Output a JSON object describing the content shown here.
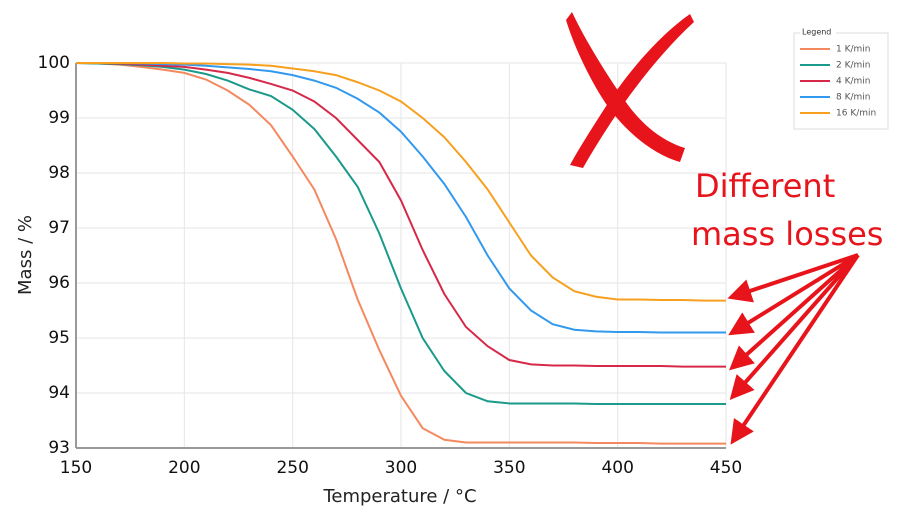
{
  "chart_data": {
    "type": "line",
    "x_label": "Temperature / °C",
    "y_label": "Mass / %",
    "legend_title": "Legend",
    "legend": "top-right",
    "grid": true,
    "annotation": [
      "Different",
      "mass losses"
    ],
    "x": [
      150,
      160,
      170,
      180,
      190,
      200,
      210,
      220,
      230,
      240,
      250,
      260,
      270,
      280,
      290,
      300,
      310,
      320,
      330,
      340,
      350,
      360,
      370,
      380,
      390,
      400,
      410,
      420,
      430,
      440,
      450
    ],
    "xlim": [
      150,
      450
    ],
    "xticks": [
      150,
      200,
      250,
      300,
      350,
      400,
      450
    ],
    "ylim": [
      93,
      100
    ],
    "yticks": [
      93,
      94,
      95,
      96,
      97,
      98,
      99,
      100
    ],
    "series": [
      {
        "name": "1 K/min",
        "color": "#f4895f",
        "values": [
          100,
          99.99,
          99.97,
          99.93,
          99.88,
          99.82,
          99.7,
          99.5,
          99.24,
          98.87,
          98.3,
          97.7,
          96.8,
          95.7,
          94.78,
          93.95,
          93.36,
          93.15,
          93.1,
          93.1,
          93.1,
          93.1,
          93.1,
          93.1,
          93.09,
          93.09,
          93.09,
          93.08,
          93.08,
          93.08,
          93.08
        ]
      },
      {
        "name": "2 K/min",
        "color": "#1a9a8a",
        "values": [
          100,
          99.99,
          99.98,
          99.96,
          99.93,
          99.88,
          99.8,
          99.68,
          99.52,
          99.4,
          99.15,
          98.8,
          98.3,
          97.75,
          96.9,
          95.9,
          95.0,
          94.4,
          94.0,
          93.85,
          93.81,
          93.81,
          93.81,
          93.81,
          93.8,
          93.8,
          93.8,
          93.8,
          93.8,
          93.8,
          93.8
        ]
      },
      {
        "name": "4 K/min",
        "color": "#d6294a",
        "values": [
          100,
          100,
          99.99,
          99.97,
          99.95,
          99.93,
          99.88,
          99.82,
          99.73,
          99.62,
          99.5,
          99.3,
          99.0,
          98.6,
          98.2,
          97.5,
          96.6,
          95.8,
          95.2,
          94.85,
          94.6,
          94.52,
          94.5,
          94.5,
          94.49,
          94.49,
          94.49,
          94.49,
          94.48,
          94.48,
          94.48
        ]
      },
      {
        "name": "8 K/min",
        "color": "#3399ee",
        "values": [
          100,
          100,
          100,
          99.99,
          99.98,
          99.97,
          99.95,
          99.92,
          99.89,
          99.85,
          99.78,
          99.68,
          99.55,
          99.35,
          99.1,
          98.75,
          98.3,
          97.8,
          97.2,
          96.5,
          95.9,
          95.5,
          95.25,
          95.15,
          95.12,
          95.11,
          95.11,
          95.1,
          95.1,
          95.1,
          95.1
        ]
      },
      {
        "name": "16 K/min",
        "color": "#f7a020",
        "values": [
          100,
          100,
          100,
          100,
          100,
          99.99,
          99.99,
          99.98,
          99.97,
          99.95,
          99.9,
          99.85,
          99.78,
          99.65,
          99.5,
          99.3,
          99.0,
          98.65,
          98.2,
          97.7,
          97.1,
          96.5,
          96.1,
          95.85,
          95.75,
          95.7,
          95.7,
          95.69,
          95.69,
          95.68,
          95.68
        ]
      }
    ]
  }
}
